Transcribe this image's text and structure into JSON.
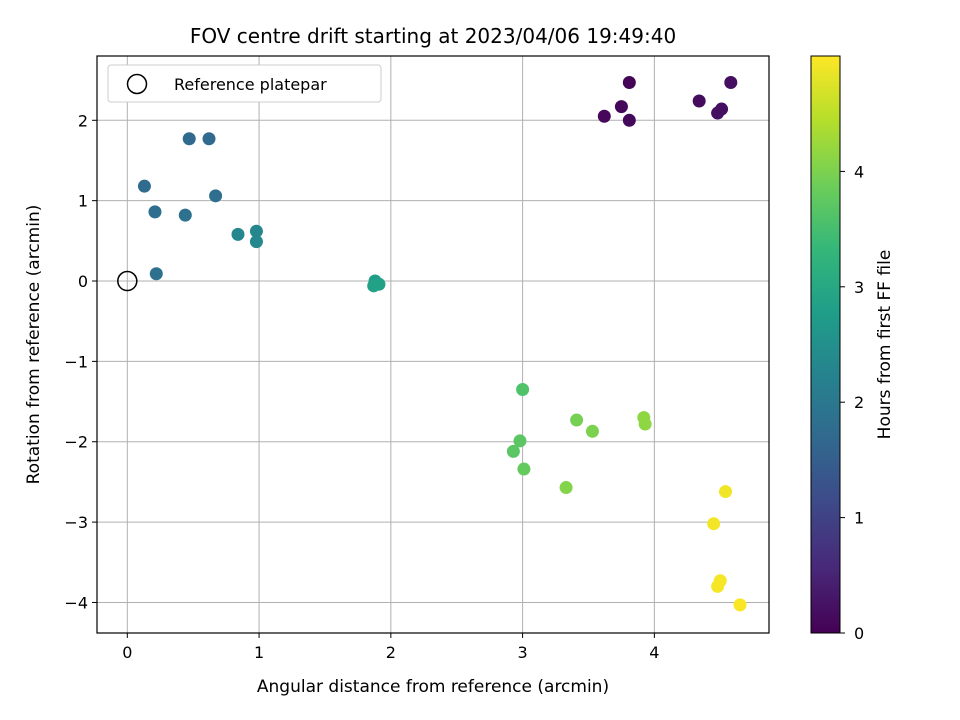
{
  "chart_data": {
    "type": "scatter",
    "title": "FOV centre drift starting at 2023/04/06 19:49:40",
    "xlabel": "Angular distance from reference (arcmin)",
    "ylabel": "Rotation from reference (arcmin)",
    "xlim": [
      -0.23,
      4.87
    ],
    "ylim": [
      -4.38,
      2.8
    ],
    "x_ticks": [
      0,
      1,
      2,
      3,
      4
    ],
    "y_ticks": [
      -4,
      -3,
      -2,
      -1,
      0,
      1,
      2
    ],
    "x_tick_labels": [
      "0",
      "1",
      "2",
      "3",
      "4"
    ],
    "y_tick_labels": [
      "−4",
      "−3",
      "−2",
      "−1",
      "0",
      "1",
      "2"
    ],
    "grid": true,
    "legend": {
      "position": "upper-left",
      "entries": [
        "Reference platepar"
      ]
    },
    "reference_point": {
      "x": 0,
      "y": 0,
      "label": "Reference platepar"
    },
    "colorbar": {
      "label": "Hours from first FF file",
      "range": [
        0,
        5
      ],
      "ticks": [
        0,
        1,
        2,
        3,
        4
      ],
      "tick_labels": [
        "0",
        "1",
        "2",
        "3",
        "4"
      ],
      "colormap": "viridis",
      "colors": [
        "#440154",
        "#482878",
        "#3e4989",
        "#31688e",
        "#26828e",
        "#1f9e89",
        "#35b779",
        "#6ece58",
        "#b5de2b",
        "#fde725"
      ]
    },
    "points": [
      {
        "x": 3.81,
        "y": 2.47,
        "t": 0.05
      },
      {
        "x": 3.75,
        "y": 2.17,
        "t": 0.08
      },
      {
        "x": 3.62,
        "y": 2.05,
        "t": 0.1
      },
      {
        "x": 3.81,
        "y": 2.0,
        "t": 0.12
      },
      {
        "x": 4.34,
        "y": 2.24,
        "t": 0.15
      },
      {
        "x": 4.58,
        "y": 2.47,
        "t": 0.18
      },
      {
        "x": 4.51,
        "y": 2.14,
        "t": 0.2
      },
      {
        "x": 4.48,
        "y": 2.09,
        "t": 0.22
      },
      {
        "x": 0.47,
        "y": 1.77,
        "t": 1.7
      },
      {
        "x": 0.62,
        "y": 1.77,
        "t": 1.7
      },
      {
        "x": 0.13,
        "y": 1.18,
        "t": 1.75
      },
      {
        "x": 0.67,
        "y": 1.06,
        "t": 1.8
      },
      {
        "x": 0.21,
        "y": 0.86,
        "t": 1.8
      },
      {
        "x": 0.44,
        "y": 0.82,
        "t": 1.85
      },
      {
        "x": 0.22,
        "y": 0.09,
        "t": 1.85
      },
      {
        "x": 0.84,
        "y": 0.58,
        "t": 2.3
      },
      {
        "x": 0.98,
        "y": 0.62,
        "t": 2.3
      },
      {
        "x": 0.98,
        "y": 0.49,
        "t": 2.35
      },
      {
        "x": 1.88,
        "y": 0.0,
        "t": 2.8
      },
      {
        "x": 1.91,
        "y": -0.04,
        "t": 2.85
      },
      {
        "x": 1.87,
        "y": -0.06,
        "t": 2.85
      },
      {
        "x": 3.0,
        "y": -1.35,
        "t": 3.6
      },
      {
        "x": 2.98,
        "y": -1.99,
        "t": 3.7
      },
      {
        "x": 2.93,
        "y": -2.12,
        "t": 3.7
      },
      {
        "x": 3.01,
        "y": -2.34,
        "t": 3.8
      },
      {
        "x": 3.41,
        "y": -1.73,
        "t": 3.95
      },
      {
        "x": 3.53,
        "y": -1.87,
        "t": 4.0
      },
      {
        "x": 3.33,
        "y": -2.57,
        "t": 4.05
      },
      {
        "x": 3.92,
        "y": -1.7,
        "t": 4.15
      },
      {
        "x": 3.93,
        "y": -1.78,
        "t": 4.15
      },
      {
        "x": 4.54,
        "y": -2.62,
        "t": 4.9
      },
      {
        "x": 4.45,
        "y": -3.02,
        "t": 4.92
      },
      {
        "x": 4.5,
        "y": -3.73,
        "t": 4.94
      },
      {
        "x": 4.48,
        "y": -3.8,
        "t": 4.95
      },
      {
        "x": 4.65,
        "y": -4.03,
        "t": 4.97
      }
    ]
  }
}
